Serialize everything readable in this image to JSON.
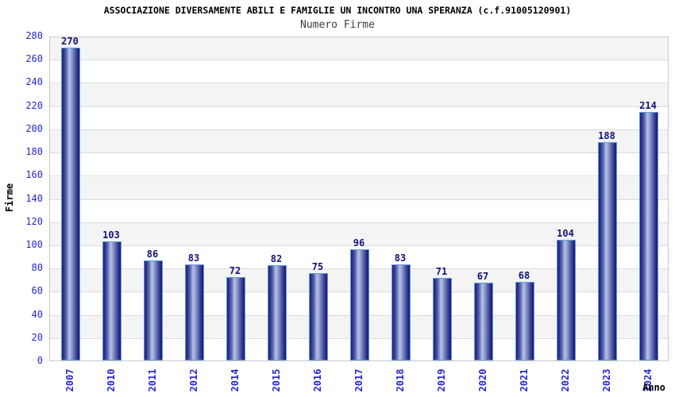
{
  "chart_data": {
    "type": "bar",
    "title": "ASSOCIAZIONE DIVERSAMENTE ABILI E FAMIGLIE UN INCONTRO UNA SPERANZA (c.f.91005120901)",
    "subtitle": "Numero Firme",
    "xlabel": "Anno",
    "ylabel": "Firme",
    "categories": [
      "2007",
      "2010",
      "2011",
      "2012",
      "2014",
      "2015",
      "2016",
      "2017",
      "2018",
      "2019",
      "2020",
      "2021",
      "2022",
      "2023",
      "2024"
    ],
    "values": [
      270,
      103,
      86,
      83,
      72,
      82,
      75,
      96,
      83,
      71,
      67,
      68,
      104,
      188,
      214
    ],
    "ylim": [
      0,
      280
    ],
    "ytick_step": 20,
    "grid": "horizontal-bands",
    "legend": "none",
    "colors": {
      "bar_dark": "#1f1f7a",
      "bar_light": "#b6c2e6",
      "bar_border": "#5e9ae0",
      "tick_text": "#2727cc",
      "value_text": "#12127a",
      "band_gray": "#f4f4f4",
      "band_white": "#ffffff",
      "title_text": "#000000",
      "subtitle_text": "#3d3d3d"
    }
  }
}
